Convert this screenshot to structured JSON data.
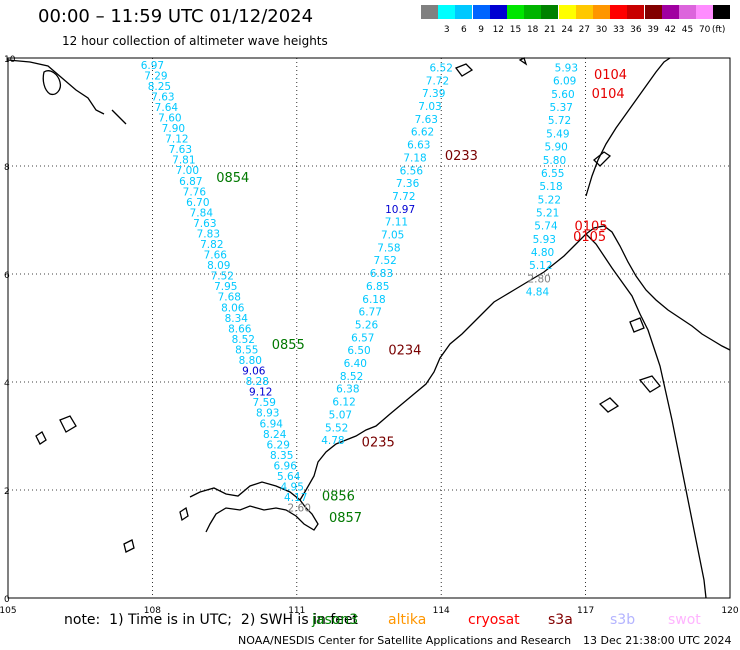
{
  "header": {
    "title": "00:00 – 11:59 UTC 01/12/2024",
    "subtitle": "12 hour collection of altimeter wave heights"
  },
  "legend": {
    "unit": "(ft)",
    "items": [
      {
        "label": "",
        "color": "#808080"
      },
      {
        "label": "3",
        "color": "#00ffff"
      },
      {
        "label": "6",
        "color": "#00c8ff"
      },
      {
        "label": "9",
        "color": "#0064ff"
      },
      {
        "label": "12",
        "color": "#0000d2"
      },
      {
        "label": "15",
        "color": "#00e600"
      },
      {
        "label": "18",
        "color": "#00b400"
      },
      {
        "label": "21",
        "color": "#008200"
      },
      {
        "label": "24",
        "color": "#ffff00"
      },
      {
        "label": "27",
        "color": "#ffc800"
      },
      {
        "label": "30",
        "color": "#ff9600"
      },
      {
        "label": "33",
        "color": "#ff0000"
      },
      {
        "label": "36",
        "color": "#c80000"
      },
      {
        "label": "39",
        "color": "#820000"
      },
      {
        "label": "42",
        "color": "#a000a0"
      },
      {
        "label": "45",
        "color": "#dc64dc"
      },
      {
        "label": "70",
        "color": "#ff8cff"
      },
      {
        "label": "",
        "color": "#000000"
      }
    ]
  },
  "axes": {
    "x_ticks": [
      "105",
      "108",
      "111",
      "114",
      "117",
      "120"
    ],
    "y_ticks": [
      "0",
      "2",
      "4",
      "6",
      "8",
      "10"
    ],
    "lon_range": [
      105,
      120
    ],
    "lat_range": [
      0,
      10
    ]
  },
  "chart_data": {
    "type": "scatter",
    "passes": [
      {
        "time_label": "0854",
        "time_color": "#007800",
        "label_lat": 7.8
      },
      {
        "time_label": "0855",
        "time_color": "#007800",
        "label_lat": 4.7
      },
      {
        "time_label": "0856",
        "time_color": "#007800",
        "label_lat": 1.9
      },
      {
        "time_label": "0857",
        "time_color": "#007800",
        "label_lat": 1.5
      },
      {
        "time_label": "0233",
        "time_color": "#780000",
        "label_lat": 8.2
      },
      {
        "time_label": "0234",
        "time_color": "#780000",
        "label_lat": 4.6
      },
      {
        "time_label": "0235",
        "time_color": "#780000",
        "label_lat": 2.9
      },
      {
        "time_label": "0104",
        "time_color": "#e60000",
        "label_lat": 9.7
      },
      {
        "time_label": "0104",
        "time_color": "#e60000",
        "label_lat": 9.35
      },
      {
        "time_label": "0105",
        "time_color": "#e60000",
        "label_lat": 6.9
      },
      {
        "time_label": "0105",
        "time_color": "#e60000",
        "label_lat": 6.7
      }
    ],
    "tracks": [
      {
        "name": "",
        "lon_start": 108.0,
        "lat_start": 9.8,
        "lon_end": 111.05,
        "lat_end": 1.6,
        "heights": [
          "6.97",
          "7.29",
          "8.25",
          "7.63",
          "7.64",
          "7.60",
          "7.90",
          "7.12",
          "7.63",
          "7.81",
          "7.00",
          "6.87",
          "7.76",
          "6.70",
          "7.84",
          "7.63",
          "7.83",
          "7.82",
          "7.66",
          "8.09",
          "7.52",
          "7.95",
          "7.68",
          "8.06",
          "8.34",
          "8.66",
          "8.52",
          "8.55",
          "8.80",
          "9.06",
          "8.28",
          "9.12",
          "7.59",
          "8.93",
          "6.94",
          "8.24",
          "6.29",
          "8.35",
          "6.96",
          "5.64",
          "4.95",
          "4.17",
          "2.60"
        ]
      },
      {
        "name": "",
        "lon_start": 114.0,
        "lat_start": 9.75,
        "lon_end": 111.75,
        "lat_end": 2.85,
        "heights": [
          "6.52",
          "7.72",
          "7.39",
          "7.03",
          "7.63",
          "6.62",
          "6.63",
          "7.18",
          "6.56",
          "7.36",
          "7.72",
          "10.97",
          "7.11",
          "7.05",
          "7.58",
          "7.52",
          "6.83",
          "6.85",
          "6.18",
          "6.77",
          "5.26",
          "6.57",
          "6.50",
          "6.40",
          "8.52",
          "6.38",
          "6.12",
          "5.07",
          "5.52",
          "4.78"
        ]
      },
      {
        "name": "",
        "lon_start": 116.6,
        "lat_start": 9.75,
        "lon_end": 116.0,
        "lat_end": 5.6,
        "heights": [
          "5.93",
          "6.09",
          "5.60",
          "5.37",
          "5.72",
          "5.49",
          "5.90",
          "5.80",
          "6.55",
          "5.18",
          "5.22",
          "5.21",
          "5.74",
          "5.93",
          "4.80",
          "5.12",
          "2.80",
          "4.84"
        ]
      }
    ]
  },
  "footer": {
    "note": "note:  1) Time is in UTC;  2) SWH is in feet",
    "satellites": [
      {
        "name": "jason3",
        "color": "#008200"
      },
      {
        "name": "altika",
        "color": "#ff9600"
      },
      {
        "name": "cryosat",
        "color": "#ff0000"
      },
      {
        "name": "s3a",
        "color": "#820000"
      },
      {
        "name": "s3b",
        "color": "#b4b4ff"
      },
      {
        "name": "swot",
        "color": "#ffb4ff"
      }
    ],
    "credit": "NOAA/NESDIS Center for Satellite Applications and Research",
    "timestamp": "13 Dec 21:38:00 UTC 2024"
  }
}
